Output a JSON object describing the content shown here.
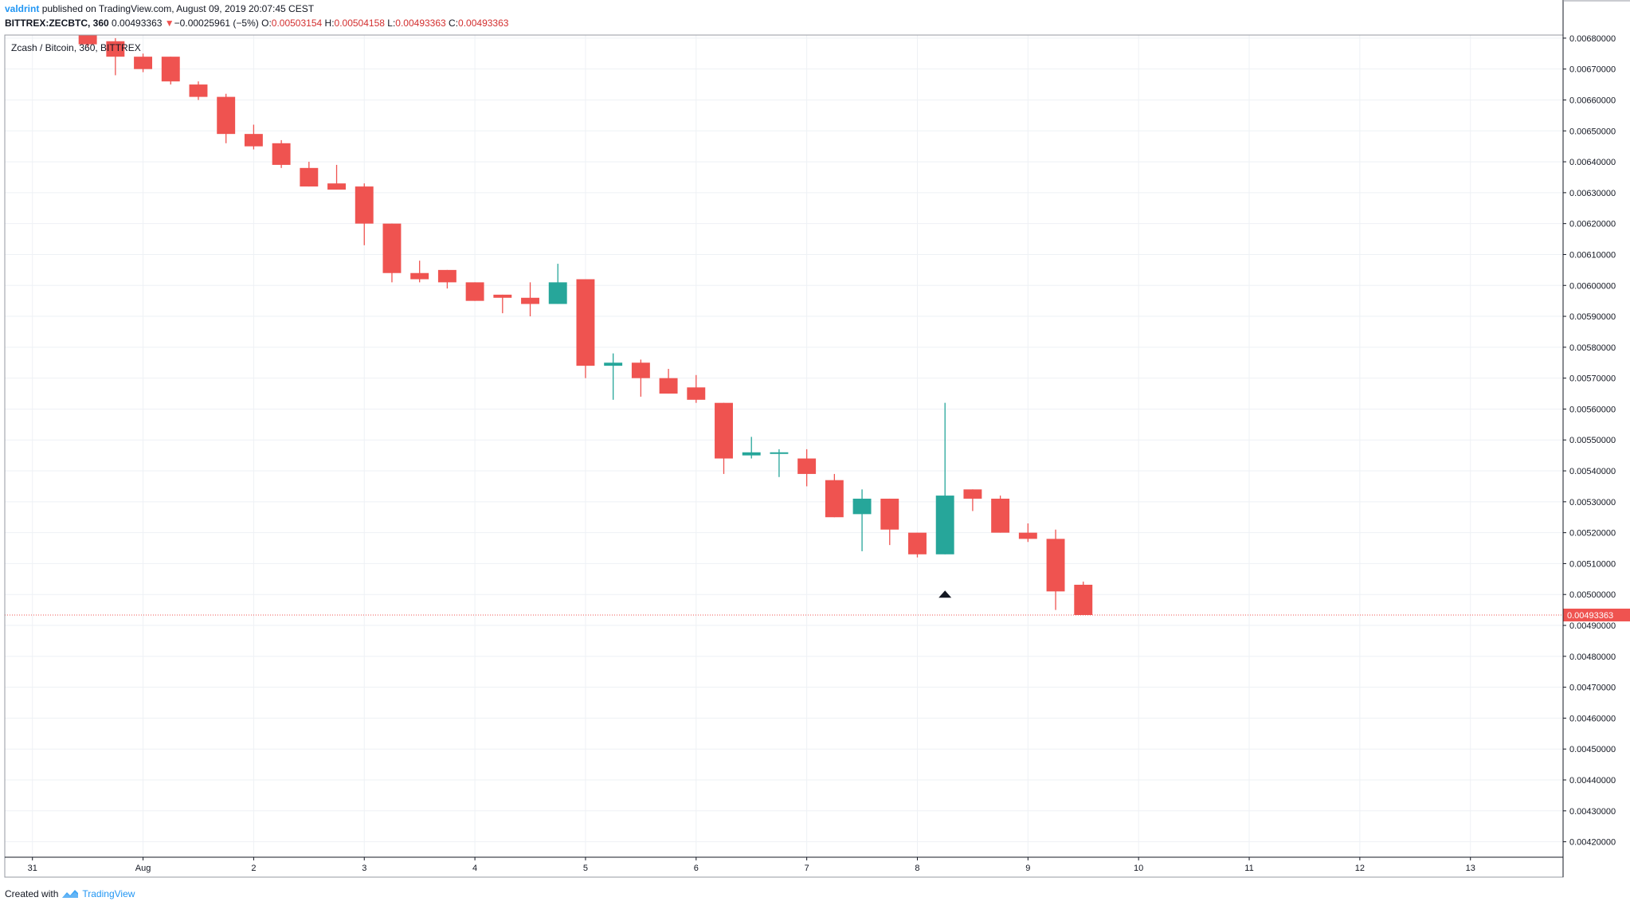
{
  "header": {
    "author": "valdrint",
    "published_text": "published on TradingView.com, August 09, 2019 20:07:45 CEST",
    "symbol": "BITTREX:ZECBTC, 360",
    "last": "0.00493363",
    "change_arrow": "▼",
    "change": "−0.00025961 (−5%)",
    "o_label": "O:",
    "o_value": "0.00503154",
    "h_label": "H:",
    "h_value": "0.00504158",
    "l_label": "L:",
    "l_value": "0.00493363",
    "c_label": "C:",
    "c_value": "0.00493363"
  },
  "chart_title": "Zcash / Bitcoin, 360, BITTREX",
  "footer": {
    "created_with": "Created with",
    "brand": "TradingView"
  },
  "colors": {
    "up": "#26a69a",
    "down": "#ef5350",
    "grid": "#eef1f5",
    "axis": "#131722",
    "price_line": "#ef5350"
  },
  "chart_data": {
    "type": "candlestick",
    "title": "Zcash / Bitcoin, 360, BITTREX",
    "interval_hours": 6,
    "ylim": [
      0.00415,
      0.00681
    ],
    "y_ticks": [
      "0.00680000",
      "0.00670000",
      "0.00660000",
      "0.00650000",
      "0.00640000",
      "0.00630000",
      "0.00620000",
      "0.00610000",
      "0.00600000",
      "0.00590000",
      "0.00580000",
      "0.00570000",
      "0.00560000",
      "0.00550000",
      "0.00540000",
      "0.00530000",
      "0.00520000",
      "0.00510000",
      "0.00500000",
      "0.00490000",
      "0.00480000",
      "0.00470000",
      "0.00460000",
      "0.00450000",
      "0.00440000",
      "0.00430000",
      "0.00420000"
    ],
    "x_ticks": [
      {
        "label": "31",
        "t": -4
      },
      {
        "label": "Aug",
        "t": 0
      },
      {
        "label": "2",
        "t": 4
      },
      {
        "label": "3",
        "t": 8
      },
      {
        "label": "4",
        "t": 12
      },
      {
        "label": "5",
        "t": 16
      },
      {
        "label": "6",
        "t": 20
      },
      {
        "label": "7",
        "t": 24
      },
      {
        "label": "8",
        "t": 28
      },
      {
        "label": "9",
        "t": 32
      },
      {
        "label": "10",
        "t": 36
      },
      {
        "label": "11",
        "t": 40
      },
      {
        "label": "12",
        "t": 44
      },
      {
        "label": "13",
        "t": 48
      }
    ],
    "x_range": [
      -5,
      51.35
    ],
    "last_price": 0.00493363,
    "last_price_label": "0.00493363",
    "marker": {
      "t": 29,
      "price": 0.005,
      "shape": "up-triangle"
    },
    "candles": [
      {
        "t": -2,
        "o": 0.00683,
        "h": 0.00685,
        "l": 0.00677,
        "c": 0.00678
      },
      {
        "t": -1,
        "o": 0.00679,
        "h": 0.0068,
        "l": 0.00668,
        "c": 0.00674
      },
      {
        "t": 0,
        "o": 0.00674,
        "h": 0.00675,
        "l": 0.00669,
        "c": 0.0067
      },
      {
        "t": 1,
        "o": 0.00674,
        "h": 0.00674,
        "l": 0.00665,
        "c": 0.00666
      },
      {
        "t": 2,
        "o": 0.00665,
        "h": 0.00666,
        "l": 0.0066,
        "c": 0.00661
      },
      {
        "t": 3,
        "o": 0.00661,
        "h": 0.00662,
        "l": 0.00646,
        "c": 0.00649
      },
      {
        "t": 4,
        "o": 0.00649,
        "h": 0.00652,
        "l": 0.00644,
        "c": 0.00645
      },
      {
        "t": 5,
        "o": 0.00646,
        "h": 0.00647,
        "l": 0.00638,
        "c": 0.00639
      },
      {
        "t": 6,
        "o": 0.00638,
        "h": 0.0064,
        "l": 0.00632,
        "c": 0.00632
      },
      {
        "t": 7,
        "o": 0.00633,
        "h": 0.00639,
        "l": 0.00631,
        "c": 0.00631
      },
      {
        "t": 8,
        "o": 0.00632,
        "h": 0.00633,
        "l": 0.00613,
        "c": 0.0062
      },
      {
        "t": 9,
        "o": 0.0062,
        "h": 0.0062,
        "l": 0.00601,
        "c": 0.00604
      },
      {
        "t": 10,
        "o": 0.00604,
        "h": 0.00608,
        "l": 0.00601,
        "c": 0.00602
      },
      {
        "t": 11,
        "o": 0.00605,
        "h": 0.00605,
        "l": 0.00599,
        "c": 0.00601
      },
      {
        "t": 12,
        "o": 0.00601,
        "h": 0.00601,
        "l": 0.00595,
        "c": 0.00595
      },
      {
        "t": 13,
        "o": 0.00597,
        "h": 0.00597,
        "l": 0.00591,
        "c": 0.00596
      },
      {
        "t": 14,
        "o": 0.00596,
        "h": 0.00601,
        "l": 0.0059,
        "c": 0.00594
      },
      {
        "t": 15,
        "o": 0.00594,
        "h": 0.00607,
        "l": 0.00594,
        "c": 0.00601
      },
      {
        "t": 16,
        "o": 0.00602,
        "h": 0.00602,
        "l": 0.0057,
        "c": 0.00574
      },
      {
        "t": 17,
        "o": 0.00574,
        "h": 0.00578,
        "l": 0.00563,
        "c": 0.00575
      },
      {
        "t": 18,
        "o": 0.00575,
        "h": 0.00576,
        "l": 0.00564,
        "c": 0.0057
      },
      {
        "t": 19,
        "o": 0.0057,
        "h": 0.00573,
        "l": 0.00565,
        "c": 0.00565
      },
      {
        "t": 20,
        "o": 0.00567,
        "h": 0.00571,
        "l": 0.00562,
        "c": 0.00563
      },
      {
        "t": 21,
        "o": 0.00562,
        "h": 0.00562,
        "l": 0.00539,
        "c": 0.00544
      },
      {
        "t": 22,
        "o": 0.00545,
        "h": 0.00551,
        "l": 0.00544,
        "c": 0.00546
      },
      {
        "t": 23,
        "o": 0.00546,
        "h": 0.00547,
        "l": 0.00538,
        "c": 0.00546
      },
      {
        "t": 24,
        "o": 0.00544,
        "h": 0.00547,
        "l": 0.00535,
        "c": 0.00539
      },
      {
        "t": 25,
        "o": 0.00537,
        "h": 0.00539,
        "l": 0.00525,
        "c": 0.00525
      },
      {
        "t": 26,
        "o": 0.00526,
        "h": 0.00534,
        "l": 0.00514,
        "c": 0.00531
      },
      {
        "t": 27,
        "o": 0.00531,
        "h": 0.00531,
        "l": 0.00516,
        "c": 0.00521
      },
      {
        "t": 28,
        "o": 0.0052,
        "h": 0.0052,
        "l": 0.00512,
        "c": 0.00513
      },
      {
        "t": 29,
        "o": 0.00513,
        "h": 0.00562,
        "l": 0.00513,
        "c": 0.00532
      },
      {
        "t": 30,
        "o": 0.00534,
        "h": 0.00534,
        "l": 0.00527,
        "c": 0.00531
      },
      {
        "t": 31,
        "o": 0.00531,
        "h": 0.00532,
        "l": 0.0052,
        "c": 0.0052
      },
      {
        "t": 32,
        "o": 0.0052,
        "h": 0.00523,
        "l": 0.00517,
        "c": 0.00518
      },
      {
        "t": 33,
        "o": 0.00518,
        "h": 0.00521,
        "l": 0.00495,
        "c": 0.00501
      },
      {
        "t": 34,
        "o": 0.00503154,
        "h": 0.00504158,
        "l": 0.00493363,
        "c": 0.00493363
      }
    ]
  }
}
